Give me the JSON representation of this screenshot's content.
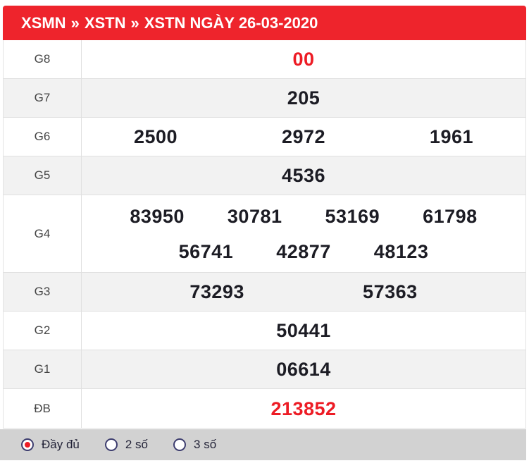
{
  "header": {
    "breadcrumb": [
      "XSMN",
      "XSTN",
      "XSTN NGÀY 26-03-2020"
    ],
    "separator": "»"
  },
  "table": {
    "rows": [
      {
        "label": "G8",
        "values": [
          "00"
        ],
        "highlight": true
      },
      {
        "label": "G7",
        "values": [
          "205"
        ],
        "highlight": false
      },
      {
        "label": "G6",
        "values": [
          "2500",
          "2972",
          "1961"
        ],
        "highlight": false
      },
      {
        "label": "G5",
        "values": [
          "4536"
        ],
        "highlight": false
      },
      {
        "label": "G4",
        "values": [
          "83950",
          "30781",
          "53169",
          "61798",
          "56741",
          "42877",
          "48123"
        ],
        "highlight": false
      },
      {
        "label": "G3",
        "values": [
          "73293",
          "57363"
        ],
        "highlight": false
      },
      {
        "label": "G2",
        "values": [
          "50441"
        ],
        "highlight": false
      },
      {
        "label": "G1",
        "values": [
          "06614"
        ],
        "highlight": false
      },
      {
        "label": "ĐB",
        "values": [
          "213852"
        ],
        "highlight": true
      }
    ]
  },
  "filters": {
    "options": [
      {
        "label": "Đầy đủ",
        "selected": true,
        "icon": "radio-icon"
      },
      {
        "label": "2 số",
        "selected": false,
        "icon": "radio-icon"
      },
      {
        "label": "3 số",
        "selected": false,
        "icon": "radio-icon"
      }
    ]
  },
  "colors": {
    "header_bg": "#ee242c",
    "highlight_red": "#ed1c25",
    "row_alt_bg": "#f2f2f2",
    "filter_bar_bg": "#d2d2d2"
  }
}
